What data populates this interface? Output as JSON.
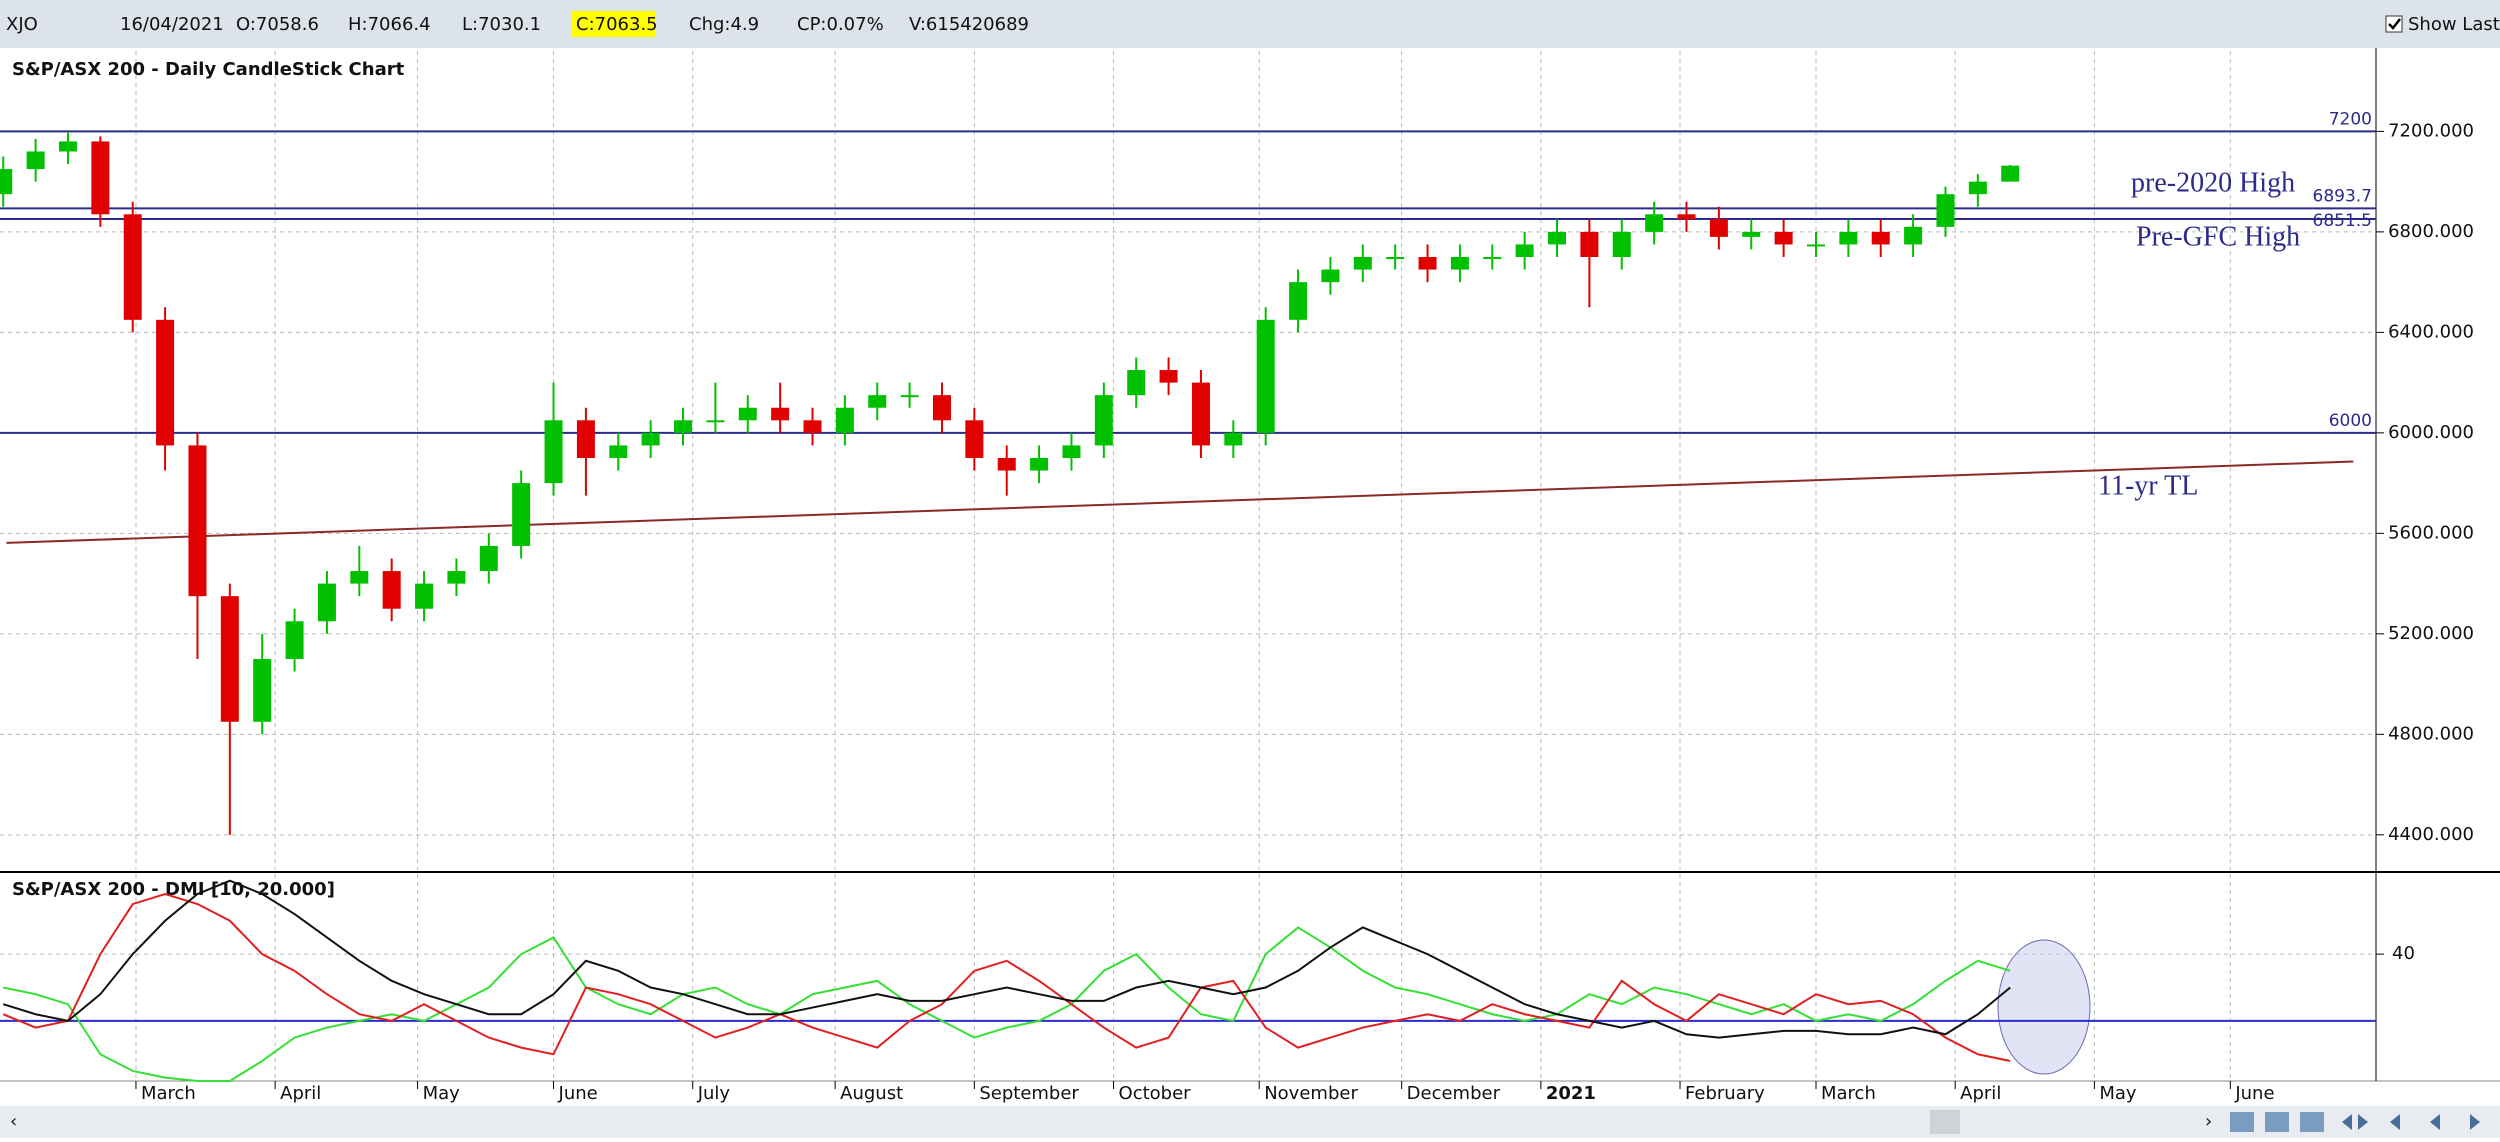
{
  "header": {
    "symbol": "XJO",
    "date": "16/04/2021",
    "open": "O:7058.6",
    "high": "H:7066.4",
    "low": "L:7030.1",
    "close": "C:7063.5",
    "change": "Chg:4.9",
    "change_pct": "CP:0.07%",
    "volume": "V:615420689",
    "show_last": "Show Last"
  },
  "chart_data": [
    {
      "type": "candlestick",
      "title": "S&P/ASX 200 - Daily CandleStick Chart",
      "up_color": "#00c000",
      "down_color": "#e00000",
      "open": [
        6950,
        7050,
        7120,
        7160,
        6870,
        6450,
        5950,
        5350,
        4850,
        5100,
        5250,
        5400,
        5450,
        5300,
        5400,
        5450,
        5550,
        5800,
        6050,
        5900,
        5950,
        6000,
        6050,
        6050,
        6100,
        6050,
        6000,
        6100,
        6150,
        6150,
        6050,
        5900,
        5850,
        5900,
        5950,
        6150,
        6250,
        6200,
        5950,
        6000,
        6450,
        6600,
        6650,
        6700,
        6700,
        6650,
        6700,
        6700,
        6750,
        6800,
        6700,
        6800,
        6870,
        6850,
        6780,
        6800,
        6750,
        6750,
        6800,
        6750,
        6820,
        6950,
        7000
      ],
      "high": [
        7100,
        7170,
        7197,
        7180,
        6920,
        6500,
        6000,
        5400,
        5200,
        5300,
        5450,
        5550,
        5500,
        5450,
        5500,
        5600,
        5850,
        6200,
        6100,
        6000,
        6050,
        6100,
        6200,
        6150,
        6200,
        6100,
        6150,
        6200,
        6200,
        6200,
        6100,
        5950,
        5950,
        6000,
        6200,
        6300,
        6300,
        6250,
        6050,
        6500,
        6650,
        6700,
        6750,
        6750,
        6750,
        6750,
        6750,
        6800,
        6850,
        6850,
        6850,
        6920,
        6920,
        6900,
        6850,
        6850,
        6800,
        6850,
        6850,
        6870,
        6980,
        7030,
        7066.4
      ],
      "low": [
        6900,
        7000,
        7070,
        6820,
        6400,
        5850,
        5100,
        4400,
        4800,
        5050,
        5200,
        5350,
        5250,
        5250,
        5350,
        5400,
        5500,
        5750,
        5750,
        5850,
        5900,
        5950,
        6000,
        6000,
        6000,
        5950,
        5950,
        6050,
        6100,
        6000,
        5850,
        5750,
        5800,
        5850,
        5900,
        6100,
        6150,
        5900,
        5900,
        5950,
        6400,
        6550,
        6600,
        6650,
        6600,
        6600,
        6650,
        6650,
        6700,
        6500,
        6650,
        6750,
        6800,
        6730,
        6730,
        6700,
        6700,
        6700,
        6700,
        6700,
        6780,
        6900,
        7030.1
      ],
      "close": [
        7050,
        7120,
        7160,
        6870,
        6450,
        5950,
        5350,
        4850,
        5100,
        5250,
        5400,
        5450,
        5300,
        5400,
        5450,
        5550,
        5800,
        6050,
        5900,
        5950,
        6000,
        6050,
        6050,
        6100,
        6050,
        6000,
        6100,
        6150,
        6150,
        6050,
        5900,
        5850,
        5900,
        5950,
        6150,
        6250,
        6200,
        5950,
        6000,
        6450,
        6600,
        6650,
        6700,
        6700,
        6650,
        6700,
        6700,
        6750,
        6800,
        6700,
        6800,
        6870,
        6850,
        6780,
        6800,
        6750,
        6750,
        6800,
        6750,
        6820,
        6950,
        7000,
        7063.5
      ],
      "xlim": [
        -0.1,
        73.3
      ],
      "xticks": [
        {
          "value": 4.1,
          "label": "March"
        },
        {
          "value": 8.4,
          "label": "April"
        },
        {
          "value": 12.8,
          "label": "May"
        },
        {
          "value": 17,
          "label": "June"
        },
        {
          "value": 21.3,
          "label": "July"
        },
        {
          "value": 25.7,
          "label": "August"
        },
        {
          "value": 30,
          "label": "September"
        },
        {
          "value": 34.3,
          "label": "October"
        },
        {
          "value": 38.8,
          "label": "November"
        },
        {
          "value": 43.2,
          "label": "December"
        },
        {
          "value": 47.5,
          "label": "2021"
        },
        {
          "value": 51.8,
          "label": "February"
        },
        {
          "value": 56,
          "label": "March"
        },
        {
          "value": 60.3,
          "label": "April"
        },
        {
          "value": 64.6,
          "label": "May"
        },
        {
          "value": 68.8,
          "label": "June"
        }
      ],
      "ylim": [
        4260,
        7520
      ],
      "yticks": [
        {
          "value": 4400,
          "label": "4400.000"
        },
        {
          "value": 4800,
          "label": "4800.000"
        },
        {
          "value": 5200,
          "label": "5200.000"
        },
        {
          "value": 5600,
          "label": "5600.000"
        },
        {
          "value": 6000,
          "label": "6000.000"
        },
        {
          "value": 6400,
          "label": "6400.000"
        },
        {
          "value": 6800,
          "label": "6800.000"
        },
        {
          "value": 7200,
          "label": "7200.000"
        }
      ],
      "grid": true,
      "levels": [
        {
          "value": 7200,
          "label": "7200"
        },
        {
          "value": 6893.7,
          "label": "6893.7"
        },
        {
          "value": 6851.5,
          "label": "6851.5"
        },
        {
          "value": 6000,
          "label": "6000"
        }
      ],
      "level_color": "#2b2b8c",
      "trendline": {
        "name": "11-yr TL",
        "x": [
          0.1,
          72.6
        ],
        "values": [
          5562,
          5886
        ],
        "color": "#8b2a2a"
      },
      "annotations": [
        "pre-2020 High",
        "Pre-GFC High"
      ]
    },
    {
      "type": "line",
      "title": "S&P/ASX 200 - DMI [10, 20.000]",
      "ylim": [
        2,
        64
      ],
      "yticks": [
        40
      ],
      "threshold": 20,
      "threshold_color": "#2b2bd0",
      "series": [
        {
          "color": "#33e033",
          "values": [
            30,
            28,
            25,
            10,
            5,
            3,
            2,
            2,
            8,
            15,
            18,
            20,
            22,
            20,
            25,
            30,
            40,
            45,
            30,
            25,
            22,
            28,
            30,
            25,
            22,
            28,
            30,
            32,
            25,
            20,
            15,
            18,
            20,
            25,
            35,
            40,
            30,
            22,
            20,
            40,
            48,
            42,
            35,
            30,
            28,
            25,
            22,
            20,
            22,
            28,
            25,
            30,
            28,
            25,
            22,
            25,
            20,
            22,
            20,
            25,
            32,
            38,
            35
          ]
        },
        {
          "color": "#e02020",
          "values": [
            22,
            18,
            20,
            40,
            55,
            58,
            55,
            50,
            40,
            35,
            28,
            22,
            20,
            25,
            20,
            15,
            12,
            10,
            30,
            28,
            25,
            20,
            15,
            18,
            22,
            18,
            15,
            12,
            20,
            25,
            35,
            38,
            32,
            25,
            18,
            12,
            15,
            30,
            32,
            18,
            12,
            15,
            18,
            20,
            22,
            20,
            25,
            22,
            20,
            18,
            32,
            25,
            20,
            28,
            25,
            22,
            28,
            25,
            26,
            22,
            15,
            10,
            8
          ]
        },
        {
          "color": "#111111",
          "values": [
            25,
            22,
            20,
            28,
            40,
            50,
            58,
            62,
            58,
            52,
            45,
            38,
            32,
            28,
            25,
            22,
            22,
            28,
            38,
            35,
            30,
            28,
            25,
            22,
            22,
            24,
            26,
            28,
            26,
            26,
            28,
            30,
            28,
            26,
            26,
            30,
            32,
            30,
            28,
            30,
            35,
            42,
            48,
            44,
            40,
            35,
            30,
            25,
            22,
            20,
            18,
            20,
            16,
            15,
            16,
            17,
            17,
            16,
            16,
            18,
            16,
            22,
            30
          ]
        }
      ]
    }
  ]
}
